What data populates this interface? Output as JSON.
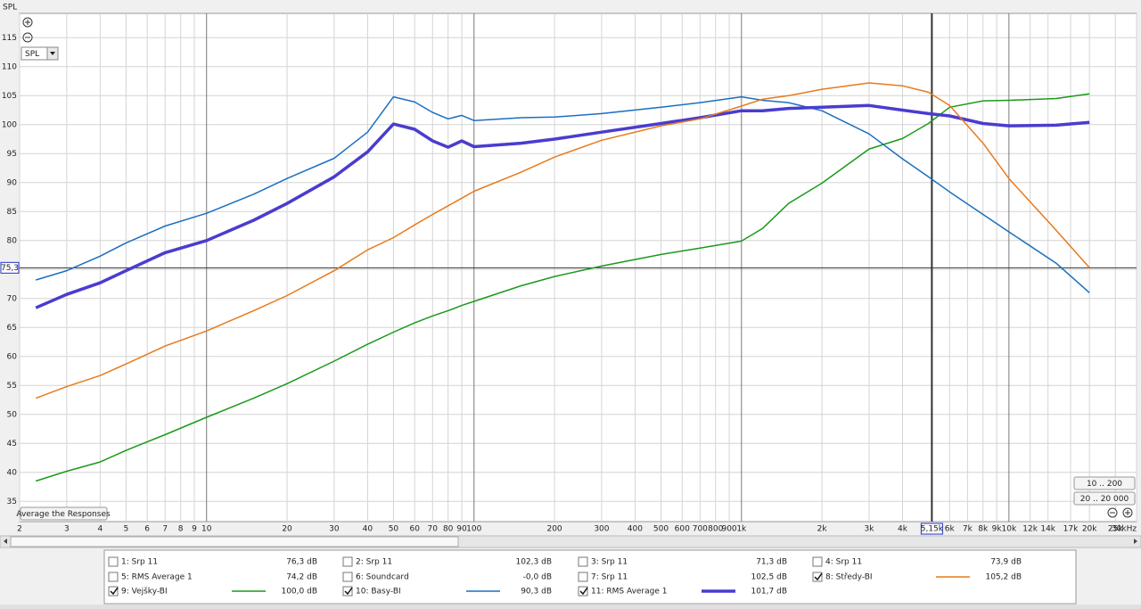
{
  "chart_data": {
    "type": "line",
    "ylabel": "SPL",
    "log_x": true,
    "grid": true,
    "xlim": [
      2,
      30000
    ],
    "ylim": [
      31.5,
      119.2
    ],
    "xticks": [
      2,
      3,
      4,
      5,
      6,
      7,
      8,
      9,
      10,
      20,
      30,
      40,
      50,
      60,
      70,
      80,
      90,
      100,
      200,
      300,
      400,
      500,
      600,
      700,
      800,
      900,
      {
        "value": 1000,
        "label": "1k"
      },
      {
        "value": 2000,
        "label": "2k"
      },
      {
        "value": 3000,
        "label": "3k"
      },
      {
        "value": 4000,
        "label": "4k"
      },
      {
        "value": 6000,
        "label": "6k"
      },
      {
        "value": 7000,
        "label": "7k"
      },
      {
        "value": 8000,
        "label": "8k"
      },
      {
        "value": 9000,
        "label": "9k"
      },
      {
        "value": 10000,
        "label": "10k"
      },
      {
        "value": 12000,
        "label": "12k"
      },
      {
        "value": 14000,
        "label": "14k"
      },
      {
        "value": 17000,
        "label": "17k"
      },
      {
        "value": 20000,
        "label": "20k"
      },
      {
        "value": 25000,
        "label": "25k"
      },
      {
        "value": 30000,
        "label": "30kHz"
      }
    ],
    "yticks": [
      35,
      40,
      45,
      50,
      55,
      60,
      65,
      70,
      75,
      80,
      85,
      90,
      95,
      100,
      105,
      110,
      115
    ],
    "cursor": {
      "x": {
        "value": 5150,
        "label": "5,15k"
      },
      "y": {
        "value": 75.3,
        "label": "75,3"
      }
    },
    "x": [
      2.3,
      3,
      4,
      5,
      7,
      10,
      15,
      20,
      30,
      40,
      50,
      60,
      70,
      80,
      90,
      100,
      150,
      200,
      300,
      500,
      700,
      1000,
      1200,
      1500,
      2000,
      3000,
      4000,
      5000,
      6000,
      8000,
      10000,
      15000,
      20000
    ],
    "series": [
      {
        "name": "9: Vejšky-BI",
        "reading": "100,0 dB",
        "color": "#1a9a1a",
        "line_width": 1.5,
        "values": [
          38.5,
          40.2,
          41.8,
          43.8,
          46.5,
          49.5,
          52.8,
          55.3,
          59.2,
          62.1,
          64.2,
          65.8,
          67,
          67.9,
          68.8,
          69.5,
          72.2,
          73.8,
          75.6,
          77.6,
          78.7,
          79.9,
          82.1,
          86.4,
          89.9,
          95.8,
          97.6,
          100.2,
          103,
          104.1,
          104.2,
          104.5,
          105.3
        ]
      },
      {
        "name": "10: Basy-BI",
        "reading": "90,3 dB",
        "color": "#1a6fc0",
        "line_width": 1.5,
        "values": [
          73.2,
          74.8,
          77.3,
          79.6,
          82.5,
          84.7,
          88,
          90.7,
          94.2,
          98.7,
          104.8,
          103.9,
          102.1,
          101,
          101.6,
          100.7,
          101.2,
          101.3,
          101.9,
          103,
          103.8,
          104.8,
          104.2,
          103.8,
          102.4,
          98.4,
          94.1,
          91,
          88.4,
          84.5,
          81.5,
          76.1,
          71
        ]
      },
      {
        "name": "11: RMS Average 1",
        "reading": "101,7 dB",
        "color": "#4a3ccf",
        "line_width": 3.5,
        "values": [
          68.4,
          70.7,
          72.7,
          74.8,
          77.9,
          80,
          83.5,
          86.4,
          91,
          95.3,
          100.1,
          99.2,
          97.2,
          96.1,
          97.2,
          96.2,
          96.8,
          97.5,
          98.7,
          100.2,
          101.2,
          102.4,
          102.4,
          102.8,
          103,
          103.3,
          102.5,
          101.9,
          101.5,
          100.2,
          99.8,
          99.9,
          100.4
        ]
      },
      {
        "name": "8: Středy-BI",
        "reading": "105,2 dB",
        "color": "#e87a1a",
        "line_width": 1.5,
        "values": [
          52.8,
          54.8,
          56.7,
          58.7,
          61.8,
          64.4,
          67.9,
          70.5,
          74.8,
          78.4,
          80.5,
          82.7,
          84.5,
          86,
          87.3,
          88.5,
          91.8,
          94.4,
          97.3,
          99.8,
          101,
          103.2,
          104.4,
          105,
          106.1,
          107.2,
          106.7,
          105.6,
          103.3,
          96.8,
          90.7,
          81.8,
          75.3
        ]
      }
    ]
  },
  "other_traces": [
    {
      "name": "1: Srp 11",
      "reading": "76,3 dB",
      "color": "#c05010"
    },
    {
      "name": "2: Srp 11",
      "reading": "102,3 dB",
      "color": "#2090a0"
    },
    {
      "name": "3: Srp 11",
      "reading": "71,3 dB",
      "color": "#a020c0"
    },
    {
      "name": "4: Srp 11",
      "reading": "73,9 dB",
      "color": "#a020c0"
    },
    {
      "name": "5: RMS Average 1",
      "reading": "74,2 dB",
      "color": "#c01010"
    },
    {
      "name": "6: Soundcard",
      "reading": "-0,0 dB",
      "color": "#a01010"
    },
    {
      "name": "7: Srp 11",
      "reading": "102,5 dB",
      "color": "#2090a0"
    }
  ],
  "controls": {
    "axis_select": "SPL",
    "average_button": "Average the Responses",
    "range_1": "10 .. 200",
    "range_2": "20 .. 20 000"
  }
}
